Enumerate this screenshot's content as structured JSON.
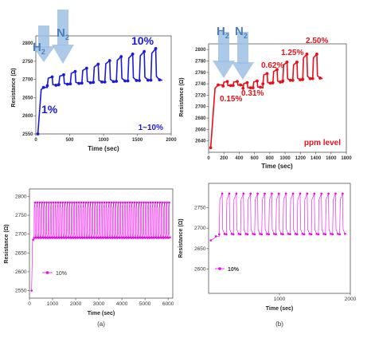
{
  "colors": {
    "blue": "#1a1adc",
    "red": "#e8101a",
    "magenta": "#ee00ee",
    "arrow": "#7fa8d8",
    "h2label": "#4a7fb8"
  },
  "chart_data": [
    {
      "id": "a-top",
      "type": "line",
      "color": "#1a1adc",
      "xlabel": "Time (sec)",
      "ylabel": "Resistance (Ω)",
      "xlim": [
        0,
        2000
      ],
      "ylim": [
        2550,
        2820
      ],
      "xticks": [
        0,
        500,
        1000,
        1500,
        2000
      ],
      "yticks": [
        2550,
        2600,
        2650,
        2700,
        2750,
        2800
      ],
      "annotations": {
        "gas_on": "H",
        "gas_off": "N",
        "subscript": "2",
        "first": "1%",
        "last": "10%",
        "range": "1~10%"
      },
      "baseline_start": 2550,
      "baseline_settle": 2678,
      "cycles": {
        "start": 170,
        "period": 170,
        "count": 10,
        "base": [
          2683,
          2686,
          2688,
          2690,
          2692,
          2693,
          2695,
          2696,
          2697,
          2698
        ],
        "peak": [
          2707,
          2713,
          2722,
          2731,
          2742,
          2752,
          2763,
          2770,
          2777,
          2785
        ]
      }
    },
    {
      "id": "b-top",
      "type": "line",
      "color": "#e8101a",
      "xlabel": "Time (sec)",
      "ylabel": "Resistance (Ω)",
      "xlim": [
        0,
        1800
      ],
      "ylim": [
        2620,
        2810
      ],
      "xticks": [
        0,
        200,
        400,
        600,
        800,
        1000,
        1200,
        1400,
        1600,
        1800
      ],
      "yticks": [
        2640,
        2660,
        2680,
        2700,
        2720,
        2740,
        2760,
        2780,
        2800
      ],
      "annotations": {
        "gas_on": "H",
        "gas_off": "N",
        "subscript": "2",
        "labels": [
          "0.15%",
          "0.31%",
          "0.62%",
          "1.25%",
          "2.50%"
        ],
        "level": "ppm level"
      },
      "baseline_start": 2628,
      "baseline_settle": 2738,
      "cycles": {
        "start": 190,
        "period": 130,
        "count": 10,
        "base": [
          2736,
          2737,
          2732,
          2733,
          2740,
          2742,
          2745,
          2746,
          2748,
          2749
        ],
        "peak": [
          2744,
          2744,
          2742,
          2745,
          2758,
          2765,
          2778,
          2778,
          2792,
          2792
        ]
      }
    },
    {
      "id": "a-bottom",
      "type": "line",
      "color": "#ee00ee",
      "xlabel": "Time (sec)",
      "ylabel": "Resistance (Ω)",
      "xlim": [
        0,
        6200
      ],
      "ylim": [
        2530,
        2820
      ],
      "xticks": [
        0,
        1000,
        2000,
        3000,
        4000,
        5000,
        6000
      ],
      "yticks": [
        2550,
        2600,
        2650,
        2700,
        2750,
        2800
      ],
      "legend": "10%",
      "panel": "(a)",
      "baseline_start": 2550,
      "baseline_settle": 2685,
      "cycles": {
        "start": 200,
        "period": 100,
        "count": 60,
        "base": [
          2690
        ],
        "peak": [
          2784
        ]
      }
    },
    {
      "id": "b-bottom",
      "type": "line",
      "color": "#ee00ee",
      "xlabel": "Time (sec)",
      "ylabel": "Resistance (Ω)",
      "xlim": [
        0,
        2000
      ],
      "ylim": [
        2540,
        2810
      ],
      "xticks": [
        1000,
        2000
      ],
      "yticks": [
        2600,
        2650,
        2700,
        2750
      ],
      "legend": "10%",
      "panel": "(b)",
      "baseline_start": 2670,
      "baseline_settle": 2680,
      "cycles": {
        "start": 150,
        "period": 100,
        "count": 18,
        "base": [
          2685
        ],
        "peak": [
          2785
        ]
      }
    }
  ]
}
